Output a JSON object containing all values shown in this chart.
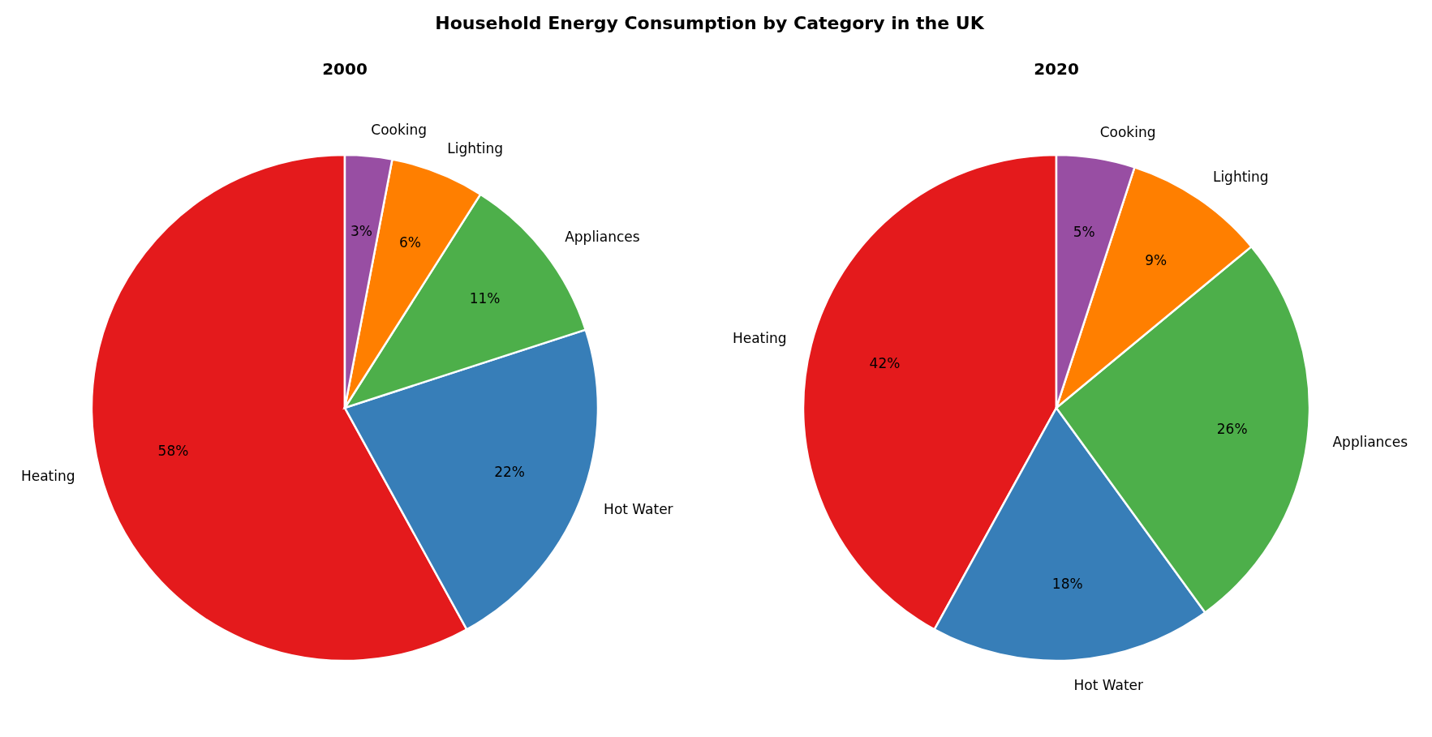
{
  "chart_data": [
    {
      "type": "pie",
      "title": "2000",
      "annotations": [
        "Household Energy Consumption by Category in the UK"
      ],
      "categories": [
        "Heating",
        "Hot Water",
        "Appliances",
        "Lighting",
        "Cooking"
      ],
      "values": [
        58,
        22,
        11,
        6,
        3
      ],
      "colors": [
        "#e41a1c",
        "#377eb8",
        "#4daf4a",
        "#ff7f00",
        "#984ea3"
      ],
      "value_labels": [
        "58%",
        "22%",
        "11%",
        "6%",
        "3%"
      ]
    },
    {
      "type": "pie",
      "title": "2020",
      "categories": [
        "Heating",
        "Hot Water",
        "Appliances",
        "Lighting",
        "Cooking"
      ],
      "values": [
        42,
        18,
        26,
        9,
        5
      ],
      "colors": [
        "#e41a1c",
        "#377eb8",
        "#4daf4a",
        "#ff7f00",
        "#984ea3"
      ],
      "value_labels": [
        "42%",
        "18%",
        "26%",
        "9%",
        "5%"
      ]
    }
  ]
}
